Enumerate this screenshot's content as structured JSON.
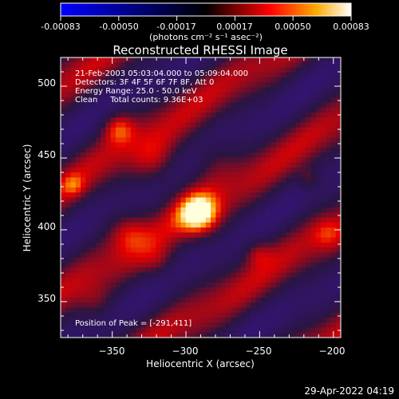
{
  "colorbar": {
    "tick_labels": [
      "-0.00083",
      "-0.00050",
      "-0.00017",
      "0.00017",
      "0.00050",
      "0.00083"
    ],
    "unit_label": "(photons cm⁻² s⁻¹ asec⁻²)",
    "range": [
      -0.00083,
      0.00083
    ],
    "colors": [
      "#0000ff",
      "#000000",
      "#ff0000",
      "#ffff00",
      "#ffffff"
    ]
  },
  "chart_data": {
    "type": "heatmap",
    "title": "Reconstructed RHESSI Image",
    "xlabel": "Heliocentric X (arcsec)",
    "ylabel": "Heliocentric Y (arcsec)",
    "xlim": [
      -385,
      -195
    ],
    "ylim": [
      325,
      520
    ],
    "x_ticks": [
      -350,
      -300,
      -250,
      -200
    ],
    "y_ticks": [
      350,
      400,
      450,
      500
    ],
    "x_tick_labels": [
      "−350",
      "−300",
      "−250",
      "−200"
    ],
    "y_tick_labels": [
      "350",
      "400",
      "450",
      "500"
    ],
    "peak": {
      "x": -291,
      "y": 411
    },
    "annotations": [
      "21-Feb-2003 05:03:04.000 to 05:09:04.000",
      "Detectors: 3F 4F 5F 6F 7F 8F, Att 0",
      "Energy Range: 25.0 - 50.0 keV",
      "Clean     Total counts: 9.36E+03"
    ],
    "peak_text": "Position of Peak = [-291,411]"
  },
  "footer": {
    "date": "29-Apr-2022 04:19"
  }
}
